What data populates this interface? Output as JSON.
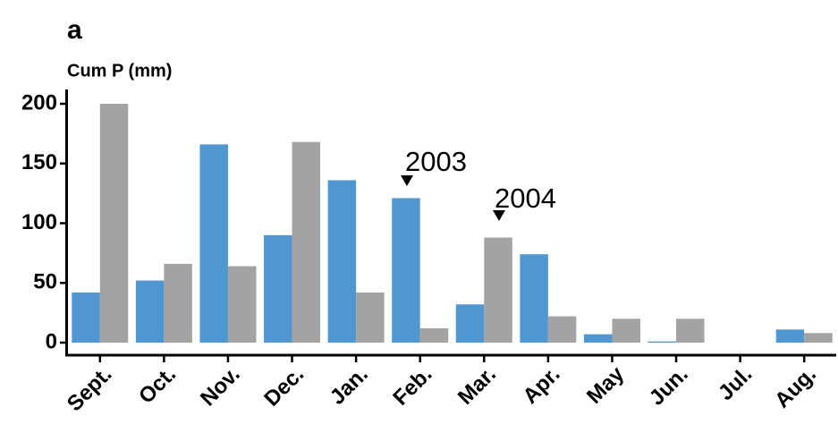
{
  "chart_data": {
    "type": "bar",
    "title": "a",
    "y_label": "Cum P (mm)",
    "categories": [
      "Sept.",
      "Oct.",
      "Nov.",
      "Dec.",
      "Jan.",
      "Feb.",
      "Mar.",
      "Apr.",
      "May",
      "Jun.",
      "Jul.",
      "Aug."
    ],
    "series": [
      {
        "color": "#5096d1",
        "values": [
          42,
          52,
          166,
          90,
          136,
          121,
          32,
          74,
          7,
          1,
          0,
          11
        ]
      },
      {
        "color": "#a3a3a3",
        "values": [
          200,
          66,
          64,
          168,
          42,
          12,
          88,
          22,
          20,
          20,
          0,
          8
        ]
      }
    ],
    "annotations": [
      {
        "text": "2003"
      },
      {
        "text": "2004"
      }
    ],
    "ylim": [
      -10.5,
      212
    ],
    "yticks": [
      0,
      50,
      100,
      150,
      200
    ]
  }
}
